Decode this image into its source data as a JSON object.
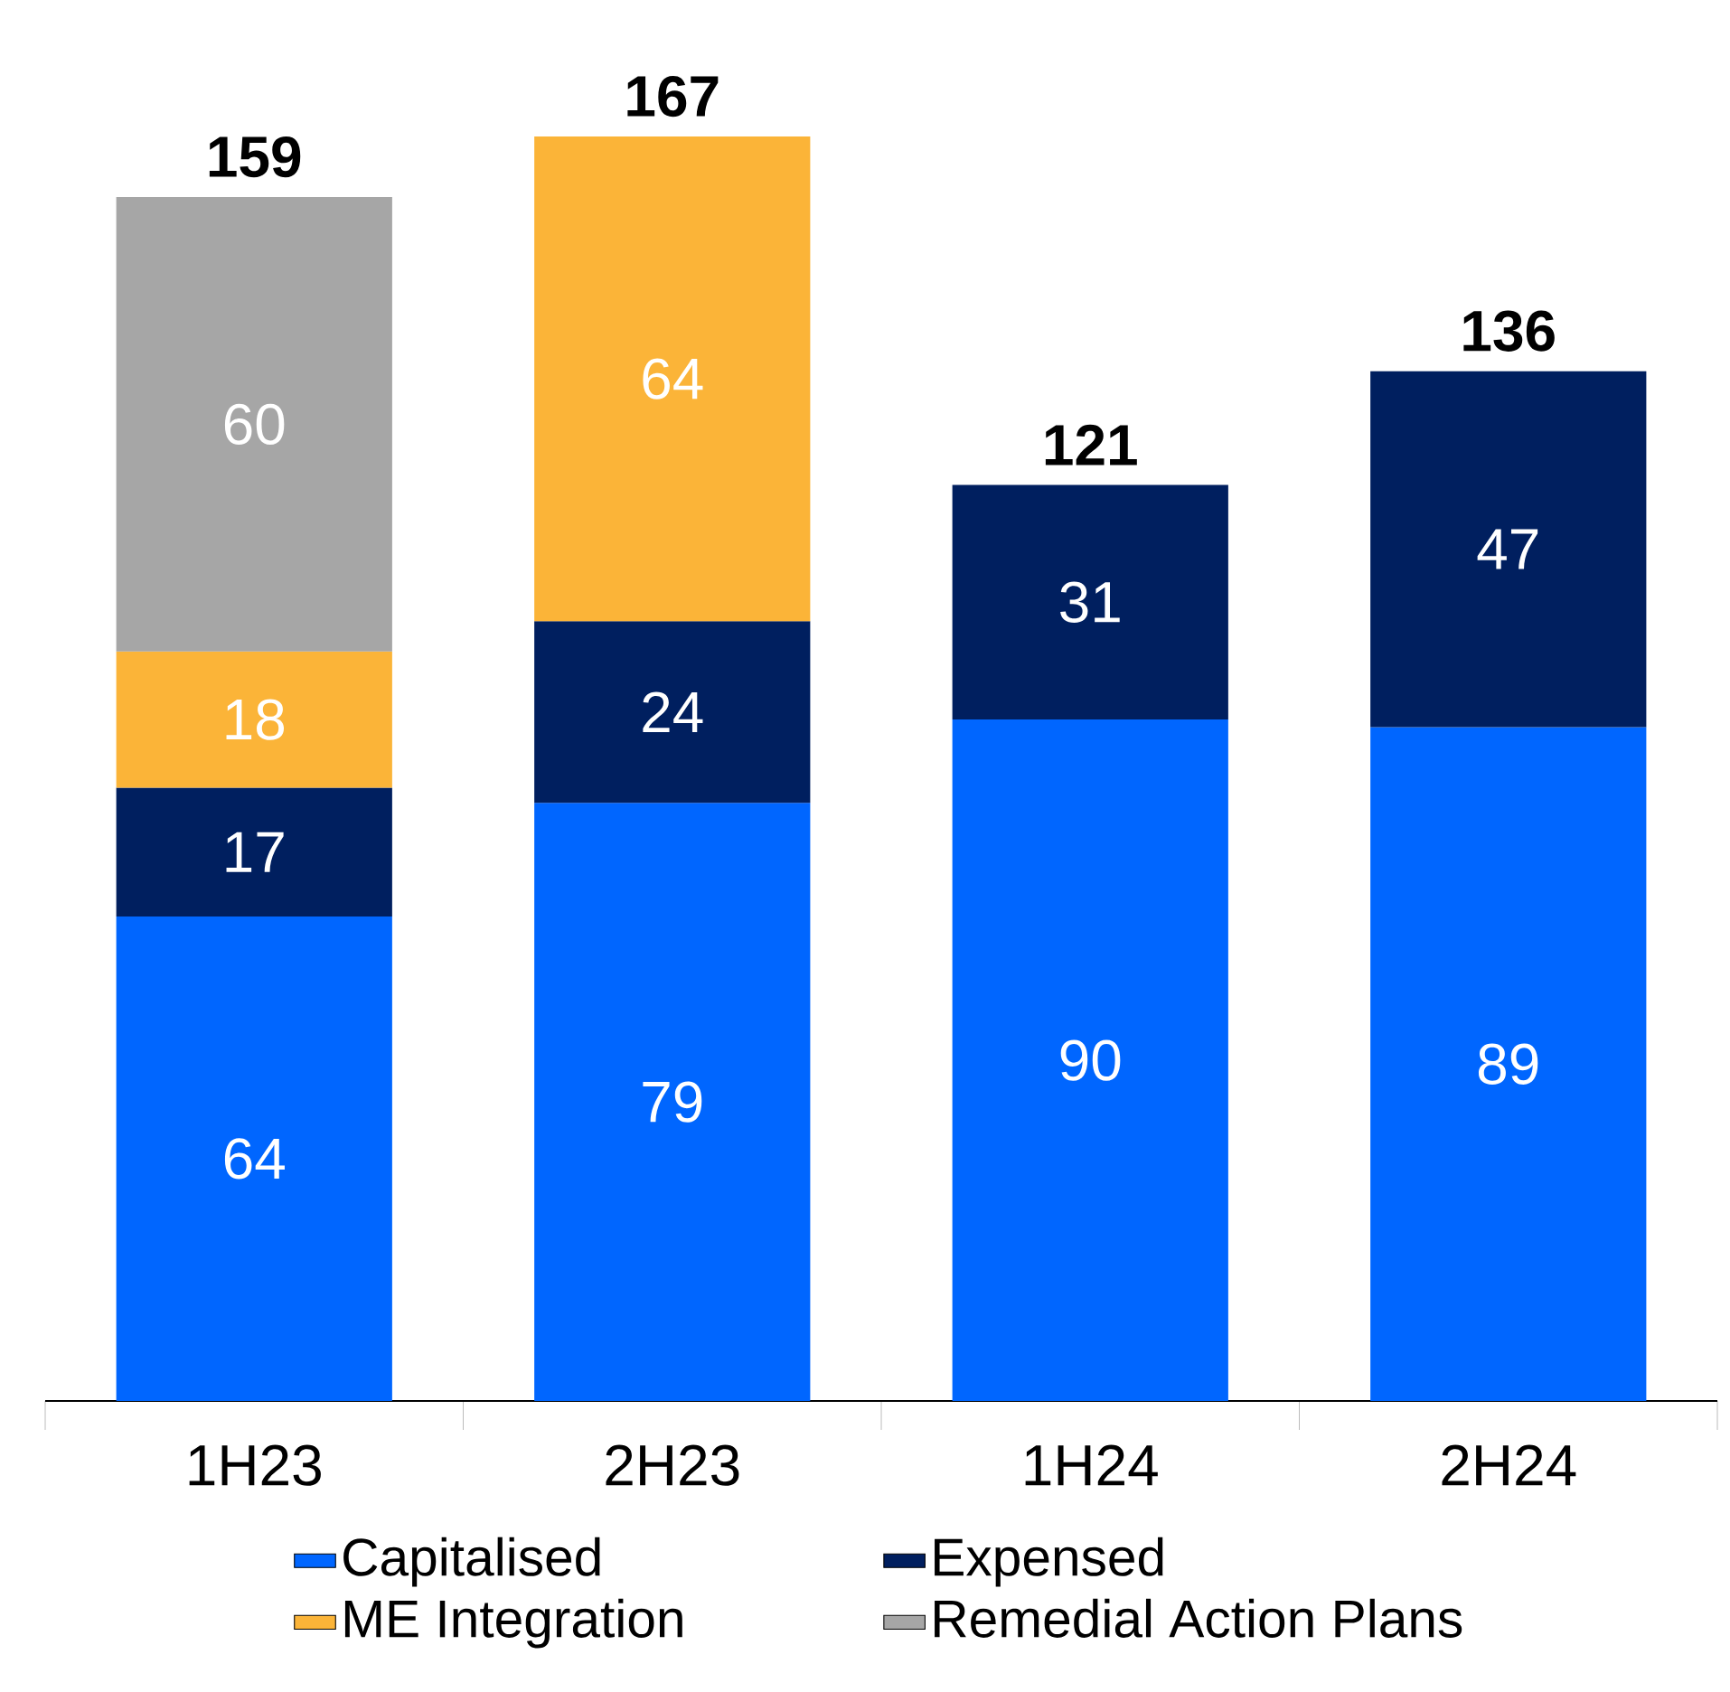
{
  "chart_data": {
    "type": "bar",
    "stacked": true,
    "data_labels": true,
    "legend": "bottom",
    "categories": [
      "1H23",
      "2H23",
      "1H24",
      "2H24"
    ],
    "series": [
      {
        "name": "Capitalised",
        "color": "#0066ff",
        "values": [
          64,
          79,
          90,
          89
        ]
      },
      {
        "name": "Expensed",
        "color": "#001f5f",
        "values": [
          17,
          24,
          31,
          47
        ]
      },
      {
        "name": "ME Integration",
        "color": "#fbb438",
        "values": [
          18,
          64,
          null,
          null
        ]
      },
      {
        "name": "Remedial Action Plans",
        "color": "#a6a6a6",
        "values": [
          60,
          null,
          null,
          null
        ]
      }
    ],
    "totals": [
      "159",
      "167",
      "121",
      "136"
    ]
  }
}
